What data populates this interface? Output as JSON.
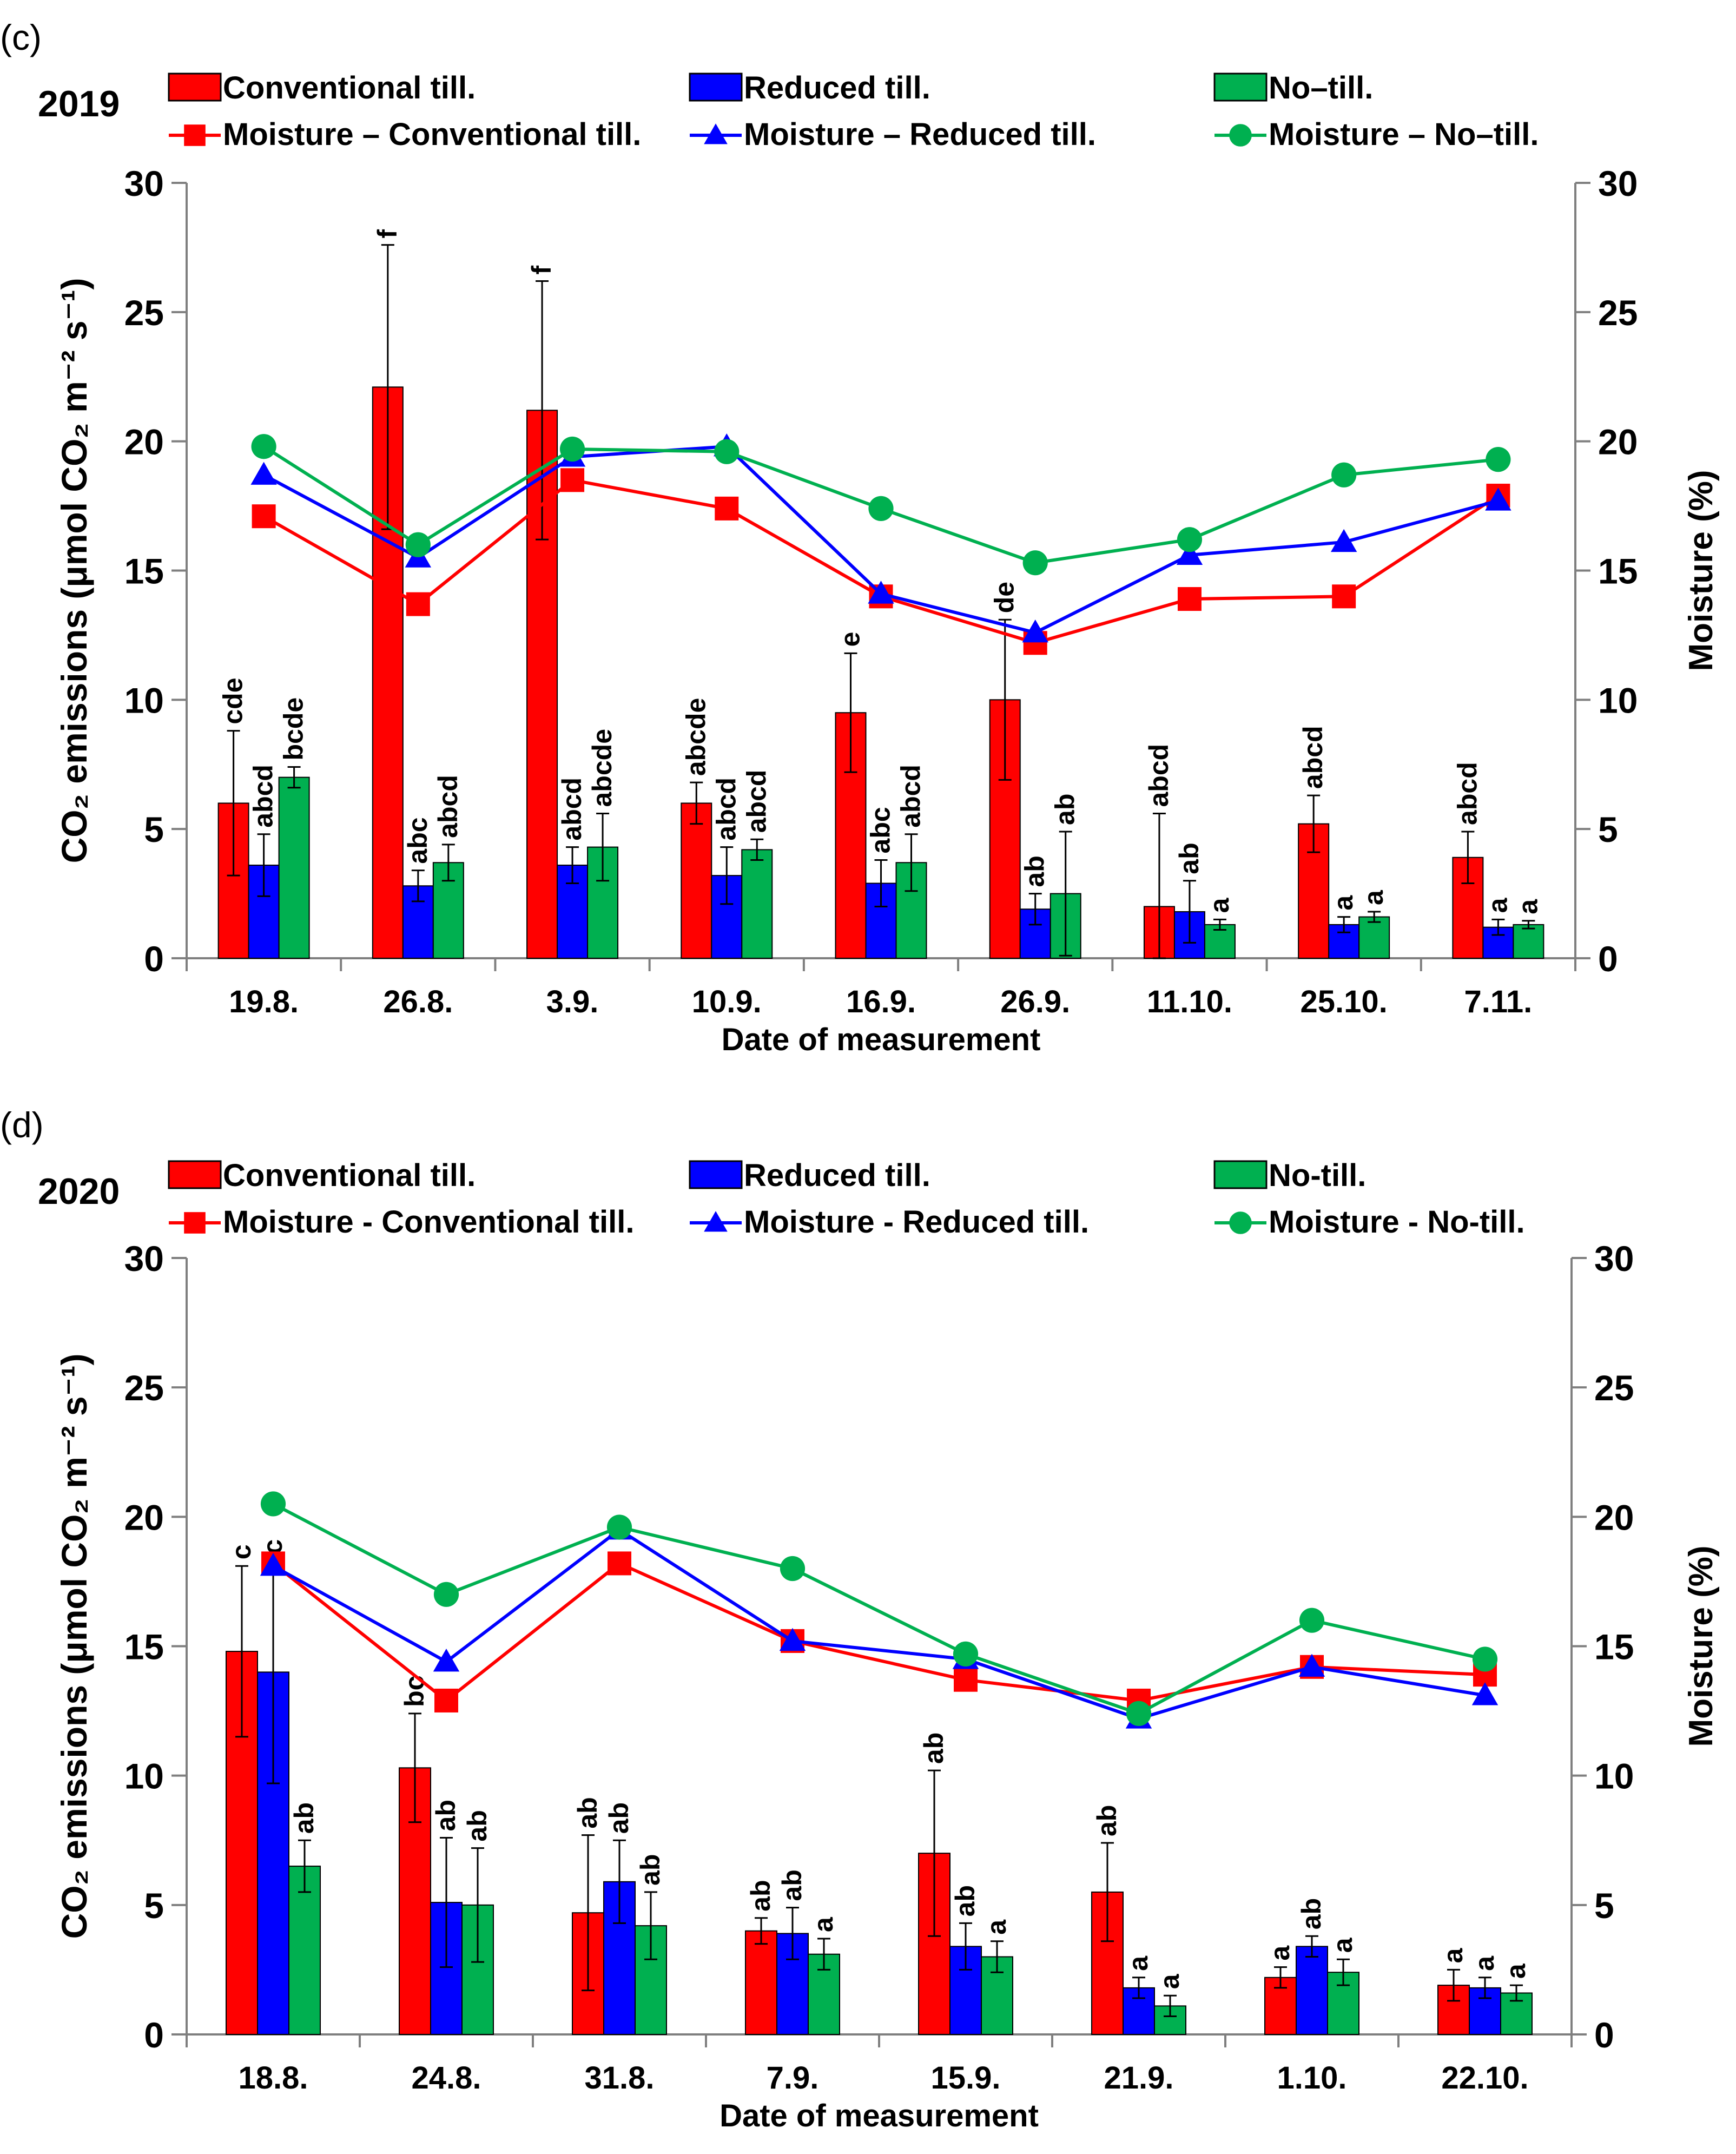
{
  "chart_data": [
    {
      "type": "bar",
      "panel_label": "(c)",
      "year": "2019",
      "categories": [
        "19.8.",
        "26.8.",
        "3.9.",
        "10.9.",
        "16.9.",
        "26.9.",
        "11.10.",
        "25.10.",
        "7.11."
      ],
      "xlabel": "Date of measurement",
      "ylabel": "CO₂ emissions (μmol CO₂ m⁻² s⁻¹)",
      "y2label": "Moisture (%)",
      "ylim": [
        0,
        30
      ],
      "y2lim": [
        0,
        30
      ],
      "yticks": [
        "0",
        "5",
        "10",
        "15",
        "20",
        "25",
        "30"
      ],
      "y2ticks": [
        "0",
        "5",
        "10",
        "15",
        "20",
        "25",
        "30"
      ],
      "legend": [
        "Conventional till.",
        "Reduced till.",
        "No–till.",
        "Moisture – Conventional till.",
        "Moisture – Reduced till.",
        "Moisture – No–till."
      ],
      "series": [
        {
          "name": "Conventional till.",
          "color": "#ff0000",
          "values": [
            6.0,
            22.1,
            21.2,
            6.0,
            9.5,
            10.0,
            2.0,
            5.2,
            3.9
          ],
          "errors": [
            2.8,
            5.5,
            5.0,
            0.8,
            2.3,
            3.1,
            3.6,
            1.1,
            1.0
          ],
          "letters": [
            "cde",
            "f",
            "f",
            "abcde",
            "e",
            "de",
            "abcd",
            "abcd",
            "abcd"
          ]
        },
        {
          "name": "Reduced till.",
          "color": "#0000ff",
          "values": [
            3.6,
            2.8,
            3.6,
            3.2,
            2.9,
            1.9,
            1.8,
            1.3,
            1.2
          ],
          "errors": [
            1.2,
            0.6,
            0.7,
            1.1,
            0.9,
            0.6,
            1.2,
            0.3,
            0.3
          ],
          "letters": [
            "abcd",
            "abc",
            "abcd",
            "abcd",
            "abc",
            "ab",
            "ab",
            "a",
            "a"
          ]
        },
        {
          "name": "No–till.",
          "color": "#00b050",
          "values": [
            7.0,
            3.7,
            4.3,
            4.2,
            3.7,
            2.5,
            1.3,
            1.6,
            1.3
          ],
          "errors": [
            0.4,
            0.7,
            1.3,
            0.4,
            1.1,
            2.4,
            0.2,
            0.2,
            0.15
          ],
          "letters": [
            "bcde",
            "abcd",
            "abcde",
            "abcd",
            "abcd",
            "ab",
            "a",
            "a",
            "a"
          ]
        }
      ],
      "moisture_series": [
        {
          "name": "Moisture – Conventional till.",
          "color": "#ff0000",
          "marker": "square",
          "values": [
            17.1,
            13.7,
            18.5,
            17.4,
            14.0,
            12.2,
            13.9,
            14.0,
            17.9
          ]
        },
        {
          "name": "Moisture – Reduced till.",
          "color": "#0000ff",
          "marker": "triangle",
          "values": [
            18.7,
            15.5,
            19.4,
            19.8,
            14.1,
            12.6,
            15.6,
            16.1,
            17.7
          ]
        },
        {
          "name": "Moisture – No–till.",
          "color": "#00b050",
          "marker": "circle",
          "values": [
            19.8,
            16.0,
            19.7,
            19.6,
            17.4,
            15.3,
            16.2,
            18.7,
            19.3
          ]
        }
      ]
    },
    {
      "type": "bar",
      "panel_label": "(d)",
      "year": "2020",
      "categories": [
        "18.8.",
        "24.8.",
        "31.8.",
        "7.9.",
        "15.9.",
        "21.9.",
        "1.10.",
        "22.10."
      ],
      "xlabel": "Date of measurement",
      "ylabel": "CO₂ emissions (μmol CO₂ m⁻² s⁻¹)",
      "y2label": "Moisture (%)",
      "ylim": [
        0,
        30
      ],
      "y2lim": [
        0,
        30
      ],
      "yticks": [
        "0",
        "5",
        "10",
        "15",
        "20",
        "25",
        "30"
      ],
      "y2ticks": [
        "0",
        "5",
        "10",
        "15",
        "20",
        "25",
        "30"
      ],
      "legend": [
        "Conventional till.",
        "Reduced till.",
        "No-till.",
        "Moisture - Conventional till.",
        "Moisture - Reduced till.",
        "Moisture - No-till."
      ],
      "series": [
        {
          "name": "Conventional till.",
          "color": "#ff0000",
          "values": [
            14.8,
            10.3,
            4.7,
            4.0,
            7.0,
            5.5,
            2.2,
            1.9
          ],
          "errors": [
            3.3,
            2.1,
            3.0,
            0.5,
            3.2,
            1.9,
            0.4,
            0.6
          ],
          "letters": [
            "c",
            "bc",
            "ab",
            "ab",
            "ab",
            "ab",
            "a",
            "a"
          ]
        },
        {
          "name": "Reduced till.",
          "color": "#0000ff",
          "values": [
            14.0,
            5.1,
            5.9,
            3.9,
            3.4,
            1.8,
            3.4,
            1.8
          ],
          "errors": [
            4.3,
            2.5,
            1.6,
            1.0,
            0.9,
            0.4,
            0.4,
            0.4
          ],
          "letters": [
            "c",
            "ab",
            "ab",
            "ab",
            "ab",
            "a",
            "ab",
            "a"
          ]
        },
        {
          "name": "No-till.",
          "color": "#00b050",
          "values": [
            6.5,
            5.0,
            4.2,
            3.1,
            3.0,
            1.1,
            2.4,
            1.6
          ],
          "errors": [
            1.0,
            2.2,
            1.3,
            0.6,
            0.6,
            0.4,
            0.5,
            0.3
          ],
          "letters": [
            "ab",
            "ab",
            "ab",
            "a",
            "a",
            "a",
            "a",
            "a"
          ]
        }
      ],
      "moisture_series": [
        {
          "name": "Moisture - Conventional till.",
          "color": "#ff0000",
          "marker": "square",
          "values": [
            18.2,
            12.9,
            18.2,
            15.2,
            13.7,
            12.9,
            14.2,
            13.9
          ]
        },
        {
          "name": "Moisture - Reduced till.",
          "color": "#0000ff",
          "marker": "triangle",
          "values": [
            18.1,
            14.4,
            19.5,
            15.2,
            14.5,
            12.2,
            14.2,
            13.1
          ]
        },
        {
          "name": "Moisture - No-till.",
          "color": "#00b050",
          "marker": "circle",
          "values": [
            20.5,
            17.0,
            19.6,
            18.0,
            14.7,
            12.4,
            16.0,
            14.5
          ]
        }
      ]
    }
  ]
}
